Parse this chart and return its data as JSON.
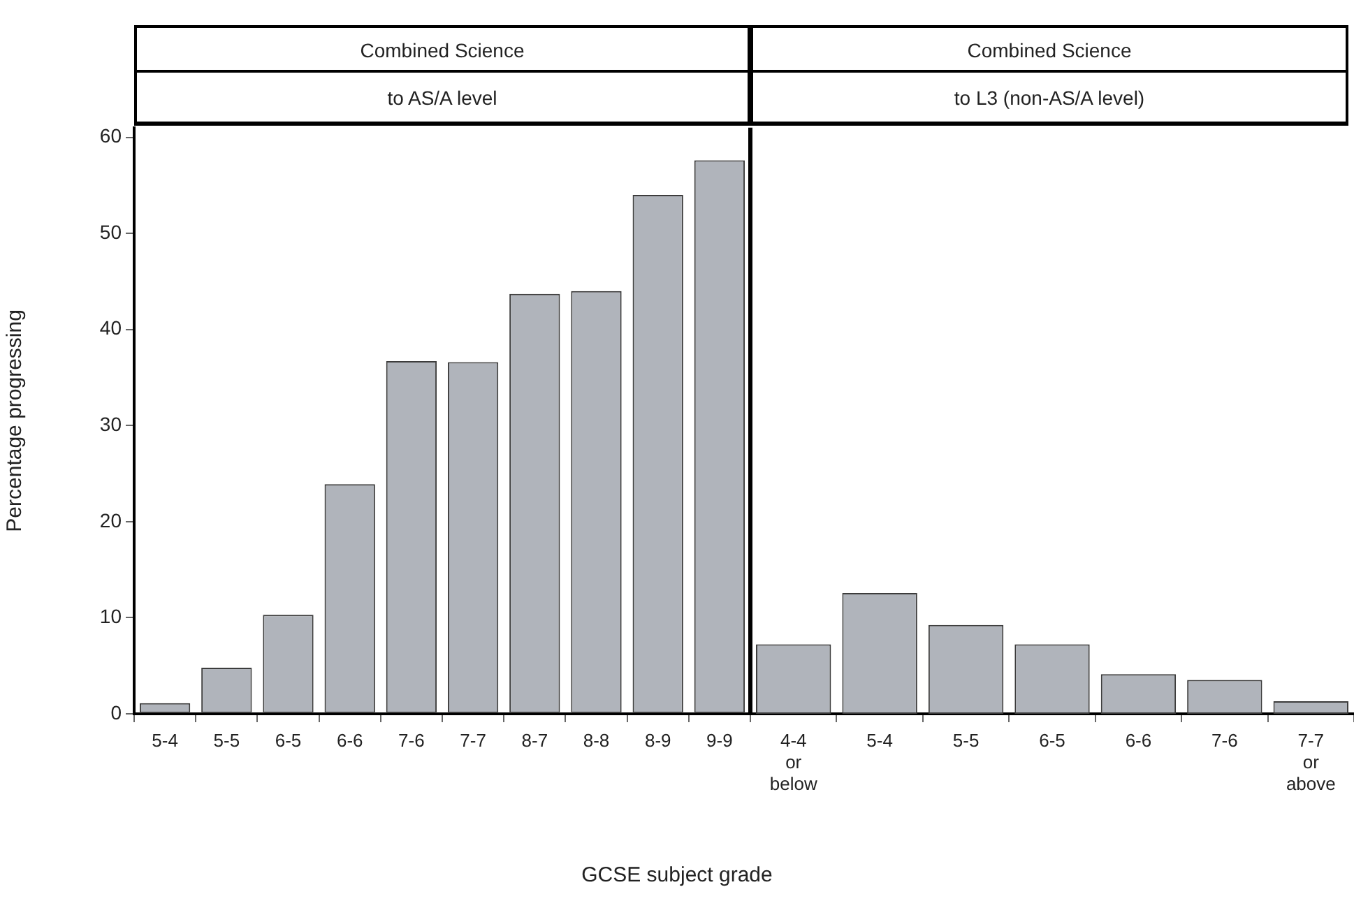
{
  "chart_data": [
    {
      "type": "bar",
      "title": "Combined Science",
      "subtitle": "to AS/A level",
      "xlabel": "GCSE subject grade",
      "ylabel": "Percentage progressing",
      "categories": [
        "5-4",
        "5-5",
        "6-5",
        "6-6",
        "7-6",
        "7-7",
        "8-7",
        "8-8",
        "8-9",
        "9-9"
      ],
      "values": [
        1.1,
        4.8,
        10.3,
        23.9,
        36.7,
        36.6,
        43.7,
        44.0,
        54.0,
        57.6
      ],
      "color": "#b0b4bb",
      "ylim": [
        0,
        61
      ],
      "yticks": [
        0,
        10,
        20,
        30,
        40,
        50,
        60
      ],
      "grid": false,
      "legend": false
    },
    {
      "type": "bar",
      "title": "Combined Science",
      "subtitle": "to L3 (non-AS/A level)",
      "categories": [
        "4-4 or below",
        "5-4",
        "5-5",
        "6-5",
        "6-6",
        "7-6",
        "7-7 or above"
      ],
      "values": [
        7.2,
        12.5,
        9.2,
        7.2,
        4.1,
        3.5,
        1.3
      ],
      "color": "#b0b4bb",
      "ylim": [
        0,
        61
      ],
      "yticks": [
        0,
        10,
        20,
        30,
        40,
        50,
        60
      ],
      "tick_labels": "x",
      "grid": false,
      "legend": false
    }
  ]
}
